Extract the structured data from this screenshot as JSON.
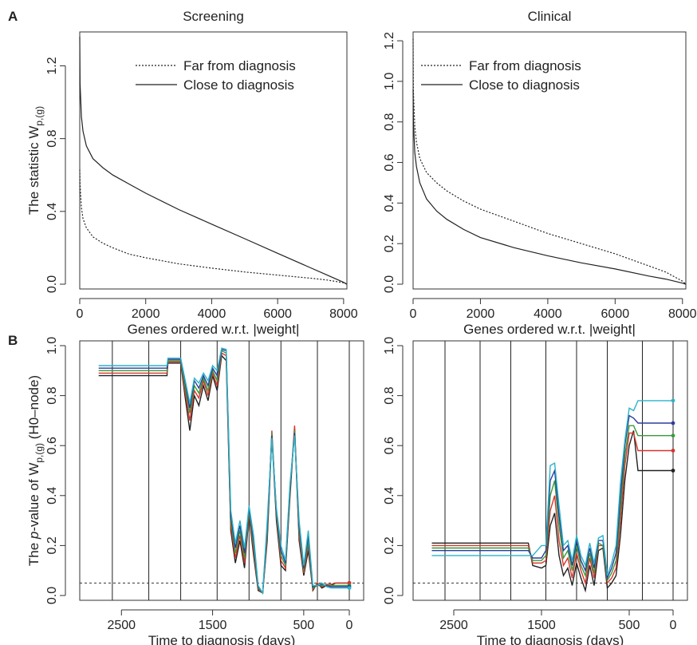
{
  "labels": {
    "panel_a": "A",
    "panel_b": "B"
  },
  "chart_data": [
    {
      "type": "line",
      "panel": "A",
      "title": "Screening",
      "xlabel": "Genes ordered w.r.t. |weight|",
      "ylabel": {
        "main": "The statistic W",
        "sub": "p,(g)"
      },
      "xlim": [
        0,
        8100
      ],
      "ylim": [
        0,
        1.36
      ],
      "xticks": [
        0,
        2000,
        4000,
        6000,
        8000
      ],
      "yticks": [
        0.0,
        0.4,
        0.8,
        1.2
      ],
      "ytick_labels": [
        "0.0",
        "0.4",
        "0.8",
        "1.2"
      ],
      "legend": "top-right",
      "series": [
        {
          "name": "Far from diagnosis",
          "style": "dotted",
          "x": [
            0,
            10,
            50,
            100,
            200,
            400,
            700,
            1000,
            1500,
            2000,
            3000,
            4000,
            5000,
            6000,
            7000,
            7500,
            8000,
            8100
          ],
          "y": [
            0.63,
            0.55,
            0.42,
            0.36,
            0.31,
            0.26,
            0.225,
            0.2,
            0.165,
            0.145,
            0.112,
            0.088,
            0.067,
            0.05,
            0.033,
            0.023,
            0.008,
            0.0
          ]
        },
        {
          "name": "Close to diagnosis",
          "style": "solid",
          "x": [
            0,
            10,
            50,
            100,
            200,
            400,
            700,
            1000,
            1500,
            2000,
            3000,
            4000,
            5000,
            6000,
            7000,
            7500,
            8000,
            8100
          ],
          "y": [
            1.36,
            1.1,
            0.92,
            0.84,
            0.76,
            0.69,
            0.64,
            0.6,
            0.55,
            0.5,
            0.41,
            0.33,
            0.25,
            0.17,
            0.09,
            0.05,
            0.01,
            0.0
          ]
        }
      ]
    },
    {
      "type": "line",
      "panel": "A",
      "title": "Clinical",
      "xlabel": "Genes ordered w.r.t. |weight|",
      "xlim": [
        0,
        8100
      ],
      "ylim": [
        0,
        1.22
      ],
      "xticks": [
        0,
        2000,
        4000,
        6000,
        8000
      ],
      "yticks": [
        0.0,
        0.2,
        0.4,
        0.6,
        0.8,
        1.0,
        1.2
      ],
      "ytick_labels": [
        "0.0",
        "0.2",
        "0.4",
        "0.6",
        "0.8",
        "1.0",
        "1.2"
      ],
      "legend": "top-right",
      "series": [
        {
          "name": "Far from diagnosis",
          "style": "dotted",
          "x": [
            0,
            10,
            50,
            100,
            200,
            400,
            700,
            1000,
            1500,
            2000,
            3000,
            4000,
            5000,
            6000,
            7000,
            7500,
            8000,
            8100
          ],
          "y": [
            1.21,
            0.95,
            0.78,
            0.7,
            0.62,
            0.55,
            0.5,
            0.46,
            0.41,
            0.37,
            0.31,
            0.25,
            0.2,
            0.15,
            0.09,
            0.06,
            0.015,
            0.0
          ]
        },
        {
          "name": "Close to diagnosis",
          "style": "solid",
          "x": [
            0,
            10,
            50,
            100,
            200,
            400,
            700,
            1000,
            1500,
            2000,
            3000,
            4000,
            5000,
            6000,
            7000,
            7500,
            8000,
            8100
          ],
          "y": [
            0.96,
            0.8,
            0.65,
            0.58,
            0.5,
            0.42,
            0.36,
            0.32,
            0.27,
            0.23,
            0.18,
            0.14,
            0.105,
            0.075,
            0.04,
            0.025,
            0.005,
            0.0
          ]
        }
      ]
    },
    {
      "type": "line",
      "panel": "B",
      "xlabel": "Time to diagnosis (days)",
      "ylabel": {
        "pre": "The ",
        "italic": "p",
        "main": "-value of W",
        "sub": "p,(g)",
        "post": " (H0–node)"
      },
      "xlim": [
        2800,
        0
      ],
      "ylim": [
        0,
        1.0
      ],
      "xticks": [
        2500,
        1500,
        500,
        0
      ],
      "yticks": [
        0.0,
        0.2,
        0.4,
        0.6,
        0.8,
        1.0
      ],
      "ytick_labels": [
        "0.0",
        "0.2",
        "0.4",
        "0.6",
        "0.8",
        "1.0"
      ],
      "hline": 0.05,
      "vlines": [
        2600,
        2200,
        1850,
        1450,
        1100,
        750,
        350,
        0
      ],
      "series_colors": [
        "#222222",
        "#d8342b",
        "#3a9b3a",
        "#2c3d9a",
        "#2cb3c8"
      ],
      "series": [
        {
          "x": [
            2750,
            2000,
            1990,
            1850,
            1800,
            1750,
            1700,
            1650,
            1600,
            1550,
            1500,
            1450,
            1400,
            1350,
            1300,
            1250,
            1200,
            1150,
            1100,
            1050,
            1000,
            950,
            900,
            850,
            800,
            750,
            700,
            650,
            600,
            550,
            500,
            450,
            400,
            350,
            300,
            250,
            200,
            150,
            100,
            50,
            0
          ],
          "y": [
            0.88,
            0.88,
            0.93,
            0.93,
            0.79,
            0.66,
            0.8,
            0.76,
            0.84,
            0.78,
            0.88,
            0.82,
            0.96,
            0.94,
            0.26,
            0.13,
            0.22,
            0.11,
            0.32,
            0.16,
            0.02,
            0.01,
            0.22,
            0.64,
            0.3,
            0.12,
            0.1,
            0.4,
            0.67,
            0.22,
            0.08,
            0.18,
            0.02,
            0.05,
            0.03,
            0.04,
            0.04,
            0.05,
            0.05,
            0.05,
            0.05
          ]
        },
        {
          "x": [
            2750,
            2000,
            1990,
            1850,
            1800,
            1750,
            1700,
            1650,
            1600,
            1550,
            1500,
            1450,
            1400,
            1350,
            1300,
            1250,
            1200,
            1150,
            1100,
            1050,
            1000,
            950,
            900,
            850,
            800,
            750,
            700,
            650,
            600,
            550,
            500,
            450,
            400,
            350,
            300,
            250,
            200,
            150,
            100,
            50,
            0
          ],
          "y": [
            0.89,
            0.89,
            0.935,
            0.935,
            0.81,
            0.7,
            0.82,
            0.79,
            0.86,
            0.8,
            0.89,
            0.84,
            0.97,
            0.96,
            0.28,
            0.15,
            0.24,
            0.13,
            0.33,
            0.18,
            0.025,
            0.01,
            0.24,
            0.66,
            0.32,
            0.14,
            0.11,
            0.42,
            0.68,
            0.24,
            0.09,
            0.2,
            0.025,
            0.05,
            0.035,
            0.045,
            0.045,
            0.05,
            0.05,
            0.05,
            0.05
          ]
        },
        {
          "x": [
            2750,
            2000,
            1990,
            1850,
            1800,
            1750,
            1700,
            1650,
            1600,
            1550,
            1500,
            1450,
            1400,
            1350,
            1300,
            1250,
            1200,
            1150,
            1100,
            1050,
            1000,
            950,
            900,
            850,
            800,
            750,
            700,
            650,
            600,
            550,
            500,
            450,
            400,
            350,
            300,
            250,
            200,
            150,
            100,
            50,
            0
          ],
          "y": [
            0.9,
            0.9,
            0.94,
            0.94,
            0.83,
            0.73,
            0.84,
            0.81,
            0.87,
            0.82,
            0.9,
            0.86,
            0.98,
            0.97,
            0.3,
            0.17,
            0.26,
            0.15,
            0.34,
            0.2,
            0.03,
            0.01,
            0.26,
            0.65,
            0.33,
            0.16,
            0.12,
            0.43,
            0.66,
            0.26,
            0.1,
            0.22,
            0.03,
            0.04,
            0.04,
            0.04,
            0.04,
            0.04,
            0.04,
            0.04,
            0.04
          ]
        },
        {
          "x": [
            2750,
            2000,
            1990,
            1850,
            1800,
            1750,
            1700,
            1650,
            1600,
            1550,
            1500,
            1450,
            1400,
            1350,
            1300,
            1250,
            1200,
            1150,
            1100,
            1050,
            1000,
            950,
            900,
            850,
            800,
            750,
            700,
            650,
            600,
            550,
            500,
            450,
            400,
            350,
            300,
            250,
            200,
            150,
            100,
            50,
            0
          ],
          "y": [
            0.91,
            0.91,
            0.945,
            0.945,
            0.85,
            0.75,
            0.86,
            0.83,
            0.88,
            0.84,
            0.91,
            0.88,
            0.985,
            0.98,
            0.32,
            0.19,
            0.28,
            0.17,
            0.35,
            0.22,
            0.035,
            0.01,
            0.28,
            0.64,
            0.34,
            0.18,
            0.13,
            0.44,
            0.65,
            0.28,
            0.11,
            0.24,
            0.035,
            0.04,
            0.045,
            0.04,
            0.035,
            0.035,
            0.035,
            0.035,
            0.035
          ]
        },
        {
          "x": [
            2750,
            2000,
            1990,
            1850,
            1800,
            1750,
            1700,
            1650,
            1600,
            1550,
            1500,
            1450,
            1400,
            1350,
            1300,
            1250,
            1200,
            1150,
            1100,
            1050,
            1000,
            950,
            900,
            850,
            800,
            750,
            700,
            650,
            600,
            550,
            500,
            450,
            400,
            350,
            300,
            250,
            200,
            150,
            100,
            50,
            0
          ],
          "y": [
            0.92,
            0.92,
            0.95,
            0.95,
            0.86,
            0.77,
            0.87,
            0.85,
            0.89,
            0.86,
            0.92,
            0.9,
            0.99,
            0.985,
            0.34,
            0.21,
            0.3,
            0.19,
            0.36,
            0.24,
            0.04,
            0.01,
            0.3,
            0.63,
            0.35,
            0.2,
            0.14,
            0.45,
            0.64,
            0.3,
            0.12,
            0.26,
            0.04,
            0.04,
            0.05,
            0.035,
            0.03,
            0.03,
            0.03,
            0.03,
            0.03
          ]
        }
      ]
    },
    {
      "type": "line",
      "panel": "B",
      "xlabel": "Time to diagnosis (days)",
      "xlim": [
        2800,
        0
      ],
      "ylim": [
        0,
        1.0
      ],
      "xticks": [
        2500,
        1500,
        500,
        0
      ],
      "yticks": [
        0.0,
        0.2,
        0.4,
        0.6,
        0.8,
        1.0
      ],
      "ytick_labels": [
        "0.0",
        "0.2",
        "0.4",
        "0.6",
        "0.8",
        "1.0"
      ],
      "hline": 0.05,
      "vlines": [
        2600,
        2200,
        1850,
        1450,
        1100,
        750,
        350,
        0
      ],
      "series_colors": [
        "#222222",
        "#d8342b",
        "#3a9b3a",
        "#2c3d9a",
        "#2cb3c8"
      ],
      "series": [
        {
          "x": [
            2750,
            1650,
            1600,
            1500,
            1450,
            1400,
            1350,
            1300,
            1250,
            1200,
            1150,
            1100,
            1050,
            1000,
            950,
            900,
            850,
            800,
            750,
            700,
            650,
            600,
            550,
            500,
            450,
            400,
            350,
            0
          ],
          "y": [
            0.21,
            0.21,
            0.12,
            0.11,
            0.12,
            0.28,
            0.33,
            0.16,
            0.08,
            0.11,
            0.04,
            0.13,
            0.07,
            0.02,
            0.12,
            0.04,
            0.18,
            0.19,
            0.03,
            0.05,
            0.08,
            0.24,
            0.46,
            0.6,
            0.66,
            0.5,
            0.5,
            0.5
          ]
        },
        {
          "x": [
            2750,
            1650,
            1600,
            1500,
            1450,
            1400,
            1350,
            1300,
            1250,
            1200,
            1150,
            1100,
            1050,
            1000,
            950,
            900,
            850,
            800,
            750,
            700,
            650,
            600,
            550,
            500,
            450,
            400,
            350,
            0
          ],
          "y": [
            0.2,
            0.2,
            0.13,
            0.13,
            0.14,
            0.34,
            0.4,
            0.22,
            0.12,
            0.15,
            0.07,
            0.17,
            0.1,
            0.05,
            0.15,
            0.07,
            0.2,
            0.2,
            0.05,
            0.07,
            0.11,
            0.3,
            0.52,
            0.65,
            0.65,
            0.58,
            0.58,
            0.58
          ]
        },
        {
          "x": [
            2750,
            1650,
            1600,
            1500,
            1450,
            1400,
            1350,
            1300,
            1250,
            1200,
            1150,
            1100,
            1050,
            1000,
            950,
            900,
            850,
            800,
            750,
            700,
            650,
            600,
            550,
            500,
            450,
            400,
            350,
            0
          ],
          "y": [
            0.19,
            0.19,
            0.14,
            0.14,
            0.16,
            0.4,
            0.46,
            0.28,
            0.15,
            0.18,
            0.1,
            0.2,
            0.12,
            0.08,
            0.17,
            0.09,
            0.21,
            0.2,
            0.06,
            0.09,
            0.14,
            0.35,
            0.56,
            0.68,
            0.68,
            0.64,
            0.64,
            0.64
          ]
        },
        {
          "x": [
            2750,
            1650,
            1600,
            1500,
            1450,
            1400,
            1350,
            1300,
            1250,
            1200,
            1150,
            1100,
            1050,
            1000,
            950,
            900,
            850,
            800,
            750,
            700,
            650,
            600,
            550,
            500,
            450,
            400,
            350,
            0
          ],
          "y": [
            0.18,
            0.18,
            0.15,
            0.15,
            0.18,
            0.46,
            0.5,
            0.32,
            0.18,
            0.2,
            0.12,
            0.22,
            0.14,
            0.1,
            0.19,
            0.11,
            0.22,
            0.22,
            0.07,
            0.11,
            0.17,
            0.4,
            0.6,
            0.72,
            0.71,
            0.69,
            0.69,
            0.69
          ]
        },
        {
          "x": [
            2750,
            1650,
            1600,
            1500,
            1450,
            1400,
            1350,
            1300,
            1250,
            1200,
            1150,
            1100,
            1050,
            1000,
            950,
            900,
            850,
            800,
            750,
            700,
            650,
            600,
            550,
            500,
            450,
            400,
            350,
            0
          ],
          "y": [
            0.16,
            0.16,
            0.16,
            0.2,
            0.2,
            0.52,
            0.53,
            0.36,
            0.2,
            0.22,
            0.14,
            0.24,
            0.16,
            0.12,
            0.21,
            0.13,
            0.23,
            0.24,
            0.08,
            0.13,
            0.2,
            0.45,
            0.62,
            0.75,
            0.74,
            0.78,
            0.78,
            0.78
          ]
        }
      ]
    }
  ]
}
